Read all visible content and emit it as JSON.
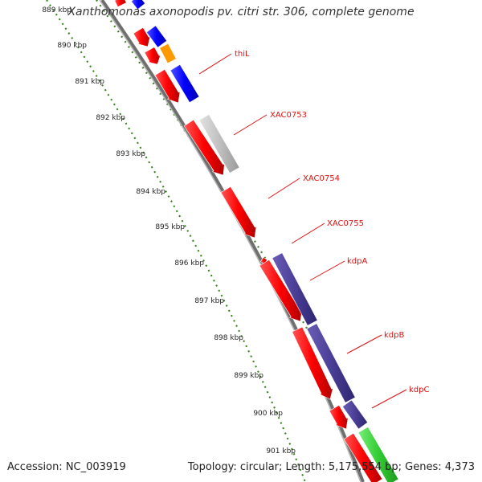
{
  "title": "Xanthomonas axonopodis pv. citri str. 306, complete genome",
  "accession": "Accession: NC_003919",
  "summary": "Topology: circular; Length: 5,175,554 bp; Genes: 4,373",
  "ruler": [
    {
      "label": "889 kbp",
      "kbp": 889
    },
    {
      "label": "890 kbp",
      "kbp": 890
    },
    {
      "label": "891 kbp",
      "kbp": 891
    },
    {
      "label": "892 kbp",
      "kbp": 892
    },
    {
      "label": "893 kbp",
      "kbp": 893
    },
    {
      "label": "894 kbp",
      "kbp": 894
    },
    {
      "label": "895 kbp",
      "kbp": 895
    },
    {
      "label": "896 kbp",
      "kbp": 896
    },
    {
      "label": "897 kbp",
      "kbp": 897
    },
    {
      "label": "898 kbp",
      "kbp": 898
    },
    {
      "label": "899 kbp",
      "kbp": 899
    },
    {
      "label": "900 kbp",
      "kbp": 900
    },
    {
      "label": "901 kbp",
      "kbp": 901
    }
  ],
  "gene_labels": [
    {
      "name": "thiL"
    },
    {
      "name": "XAC0753"
    },
    {
      "name": "XAC0754"
    },
    {
      "name": "XAC0755"
    },
    {
      "name": "kdpA"
    },
    {
      "name": "kdpB"
    },
    {
      "name": "kdpC"
    }
  ],
  "colors": {
    "red": "#ff0000",
    "blue": "#0000ff",
    "orange": "#ff9900",
    "gray": "#c0c0c0",
    "purple": "#4a3e96",
    "green": "#33cc33",
    "backbone": "#888888",
    "tick_green": "#2e7d12",
    "label_red": "#dd1111"
  }
}
